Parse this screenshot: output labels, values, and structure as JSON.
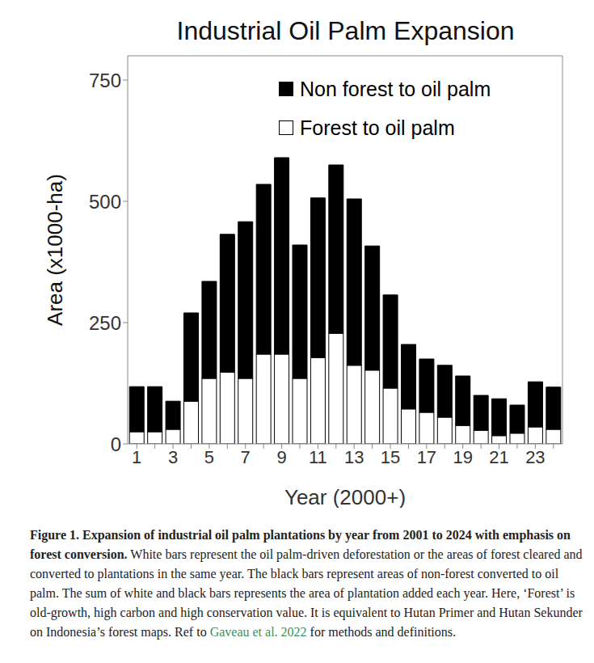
{
  "chart_data": {
    "type": "bar",
    "title": "Industrial Oil Palm Expansion",
    "x_label": "Year (2000+)",
    "y_label": "Area (x1000-ha)",
    "categories": [
      "1",
      null,
      "3",
      null,
      "5",
      null,
      "7",
      null,
      "9",
      null,
      "11",
      null,
      "13",
      null,
      "15",
      null,
      "17",
      null,
      "19",
      null,
      "21",
      null,
      "23",
      null
    ],
    "series": [
      {
        "name": "Non forest to oil palm",
        "color": "#000000",
        "values": [
          93,
          93,
          58,
          182,
          200,
          284,
          323,
          350,
          405,
          275,
          329,
          347,
          343,
          256,
          192,
          133,
          110,
          107,
          102,
          72,
          76,
          58,
          93,
          87
        ]
      },
      {
        "name": "Forest to oil palm",
        "color": "#ffffff",
        "values": [
          25,
          25,
          30,
          88,
          135,
          148,
          135,
          185,
          185,
          135,
          178,
          228,
          162,
          152,
          115,
          72,
          65,
          55,
          38,
          28,
          17,
          22,
          35,
          30
        ]
      }
    ],
    "stacked": true,
    "ylim": [
      0,
      800
    ],
    "yticks": [
      0,
      250,
      500,
      750
    ],
    "grid": false,
    "legend": "upper right"
  },
  "caption": {
    "heading": "Figure 1. Expansion of industrial oil palm plantations by year from 2001 to 2024 with emphasis on forest conversion.",
    "text": "White bars represent the oil palm-driven deforestation or the areas of forest cleared and converted to plantations in the same year. The black bars represent areas of non-forest converted to oil palm. The sum of white and black bars represents the area of plantation added each year. Here, ‘Forest’ is old-growth, high carbon and high conservation value. It is equivalent to Hutan Primer and Hutan Sekunder on Indonesia’s forest maps. Ref to",
    "link": "Gaveau et al. 2022",
    "text_after": "for methods and definitions."
  }
}
